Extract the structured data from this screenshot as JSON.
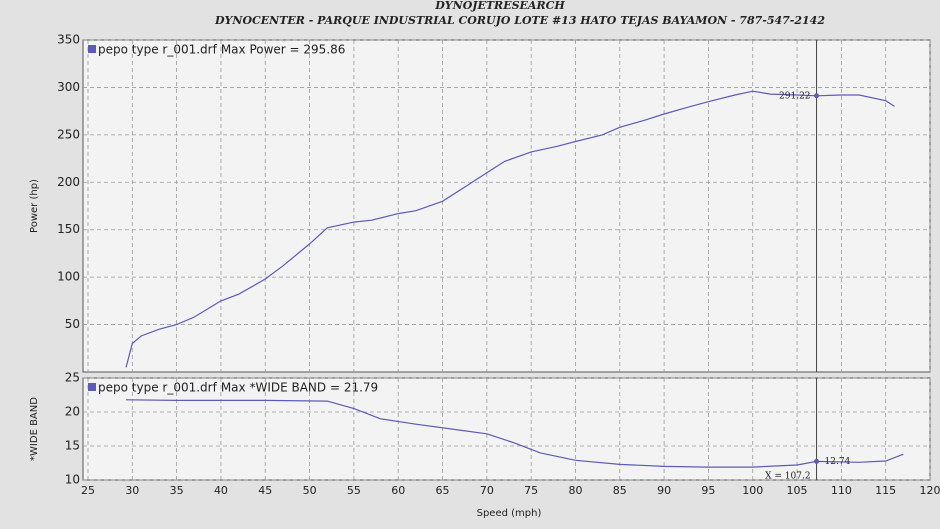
{
  "chart_data": [
    {
      "type": "line",
      "title": "DYNOJETRESEARCH",
      "subtitle": "DYNOCENTER - PARQUE INDUSTRIAL CORUJO LOTE #13 HATO TEJAS BAYAMON - 787-547-2142",
      "ylabel": "Power (hp)",
      "annotation": "Max Power = 295.86",
      "xlim": [
        25,
        120
      ],
      "xticks": [
        25,
        30,
        35,
        40,
        45,
        50,
        55,
        60,
        65,
        70,
        75,
        80,
        85,
        90,
        95,
        100,
        105,
        110,
        115,
        120
      ],
      "ylim": [
        0,
        350
      ],
      "yticks": [
        50,
        100,
        150,
        200,
        250,
        300,
        350
      ],
      "grid": true,
      "x": [
        29.3,
        30,
        31,
        33,
        35,
        37,
        40,
        42,
        45,
        47,
        50,
        52,
        55,
        57,
        60,
        62,
        65,
        68,
        70,
        72,
        75,
        78,
        80,
        83,
        85,
        88,
        90,
        93,
        95,
        98,
        100,
        102,
        105,
        107.2,
        110,
        112,
        115,
        116
      ],
      "series": [
        {
          "name": "pepo type r_001.drf",
          "color": "#5b5bb8",
          "values": [
            5,
            30,
            38,
            45,
            50,
            58,
            75,
            82,
            98,
            112,
            135,
            152,
            158,
            160,
            167,
            170,
            180,
            198,
            210,
            222,
            232,
            238,
            243,
            250,
            258,
            266,
            272,
            280,
            285,
            292,
            296,
            293,
            292,
            291.22,
            292,
            292,
            286,
            280
          ]
        }
      ],
      "marker": {
        "x": 107.2,
        "value": 291.22
      }
    },
    {
      "type": "line",
      "ylabel": "*WIDE BAND",
      "xlabel": "Speed (mph)",
      "annotation": "Max *WIDE BAND = 21.79",
      "xlim": [
        25,
        120
      ],
      "xticks": [
        25,
        30,
        35,
        40,
        45,
        50,
        55,
        60,
        65,
        70,
        75,
        80,
        85,
        90,
        95,
        100,
        105,
        110,
        115,
        120
      ],
      "ylim": [
        10,
        25
      ],
      "yticks": [
        10,
        15,
        20,
        25
      ],
      "grid": true,
      "x": [
        29.3,
        35,
        45,
        52,
        55,
        58,
        62,
        66,
        70,
        73,
        76,
        80,
        85,
        90,
        95,
        100,
        105,
        107.2,
        112,
        115,
        117
      ],
      "series": [
        {
          "name": "pepo type r_001.drf",
          "color": "#5b5bb8",
          "values": [
            21.8,
            21.7,
            21.7,
            21.6,
            20.5,
            19.0,
            18.2,
            17.5,
            16.8,
            15.5,
            14.0,
            12.9,
            12.3,
            12.0,
            11.9,
            11.9,
            12.2,
            12.74,
            12.6,
            12.8,
            13.8
          ]
        }
      ],
      "marker": {
        "x": 107.2,
        "value": 12.74,
        "x_label": "X = 107.2"
      }
    }
  ]
}
